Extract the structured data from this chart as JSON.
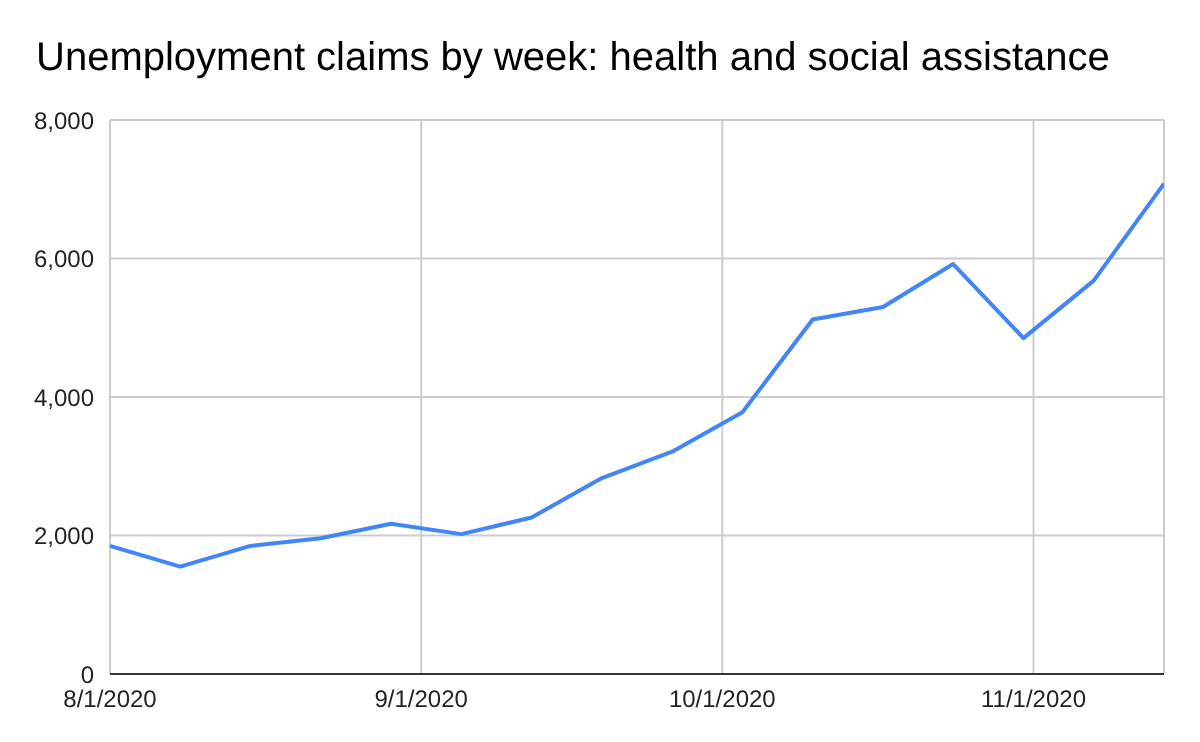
{
  "chart_data": {
    "type": "line",
    "title": "Unemployment claims by week: health and social assistance",
    "x": [
      "2020-08-01",
      "2020-08-08",
      "2020-08-15",
      "2020-08-22",
      "2020-08-29",
      "2020-09-05",
      "2020-09-12",
      "2020-09-19",
      "2020-09-26",
      "2020-10-03",
      "2020-10-10",
      "2020-10-17",
      "2020-10-24",
      "2020-10-31",
      "2020-11-07",
      "2020-11-14"
    ],
    "series": [
      {
        "color": "#4285f4",
        "values": [
          1850,
          1550,
          1850,
          1960,
          2170,
          2020,
          2260,
          2830,
          3210,
          3780,
          5120,
          5300,
          5920,
          4850,
          5680,
          7080
        ]
      }
    ],
    "xlim": [
      "2020-08-01",
      "2020-11-14"
    ],
    "xticks": [
      {
        "value": "2020-08-01",
        "label": "8/1/2020"
      },
      {
        "value": "2020-09-01",
        "label": "9/1/2020"
      },
      {
        "value": "2020-10-01",
        "label": "10/1/2020"
      },
      {
        "value": "2020-11-01",
        "label": "11/1/2020"
      }
    ],
    "ylim": [
      0,
      8000
    ],
    "yticks": [
      {
        "value": 0,
        "label": "0"
      },
      {
        "value": 2000,
        "label": "2,000"
      },
      {
        "value": 4000,
        "label": "4,000"
      },
      {
        "value": 6000,
        "label": "6,000"
      },
      {
        "value": 8000,
        "label": "8,000"
      }
    ],
    "grid": true,
    "legend": false,
    "marker": "none",
    "line_style": "solid"
  }
}
